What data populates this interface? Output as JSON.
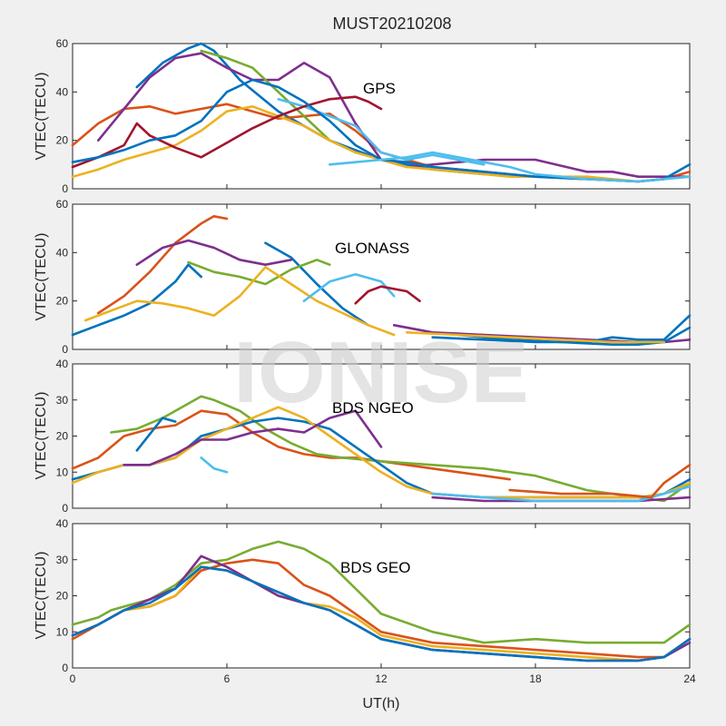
{
  "figure": {
    "title": "MUST20210208",
    "watermark": "IONISE",
    "xlabel": "UT(h)",
    "xticks": [
      "0",
      "6",
      "12",
      "18",
      "24"
    ]
  },
  "colors": [
    "#0072bd",
    "#d95319",
    "#edb120",
    "#7e2f8e",
    "#77ac30",
    "#4dbeee",
    "#a2142f"
  ],
  "chart_data": [
    {
      "type": "line",
      "annotation": "GPS",
      "xlabel": "",
      "ylabel": "VTEC(TECU)",
      "xlim": [
        0,
        24
      ],
      "ylim": [
        0,
        60
      ],
      "yticks": [
        0,
        20,
        40,
        60
      ],
      "series": [
        {
          "color": "#0072bd",
          "x": [
            2.5,
            3.5,
            4.5,
            5,
            5.5,
            6.5,
            8,
            10,
            12,
            14,
            16
          ],
          "y": [
            42,
            52,
            58,
            60,
            57,
            45,
            32,
            20,
            12,
            8,
            6
          ]
        },
        {
          "color": "#d95319",
          "x": [
            0,
            1,
            2,
            3,
            4,
            5,
            6,
            7,
            8,
            9,
            10,
            11,
            12,
            14,
            16,
            18,
            20,
            22,
            23,
            24
          ],
          "y": [
            18,
            27,
            33,
            34,
            31,
            33,
            35,
            32,
            29,
            30,
            31,
            24,
            15,
            9,
            7,
            5,
            4,
            3,
            4,
            7
          ]
        },
        {
          "color": "#7e2f8e",
          "x": [
            1,
            2,
            3,
            4,
            5,
            6,
            7,
            8,
            9,
            10,
            11,
            12,
            13,
            14,
            15,
            16,
            18,
            20,
            21,
            22,
            24
          ],
          "y": [
            20,
            33,
            46,
            54,
            56,
            50,
            45,
            45,
            52,
            46,
            27,
            12,
            9,
            10,
            11,
            12,
            12,
            7,
            7,
            5,
            5
          ]
        },
        {
          "color": "#77ac30",
          "x": [
            5,
            6,
            7,
            8,
            9,
            10,
            11
          ],
          "y": [
            57,
            54,
            50,
            40,
            30,
            20,
            15
          ]
        },
        {
          "color": "#edb120",
          "x": [
            0,
            1,
            2,
            3,
            4,
            5,
            6,
            7,
            8,
            9,
            10,
            11,
            12,
            13,
            14,
            15,
            16,
            17,
            18,
            20,
            22,
            24
          ],
          "y": [
            5,
            8,
            12,
            15,
            18,
            24,
            32,
            34,
            30,
            26,
            20,
            15,
            12,
            9,
            8,
            7,
            6,
            5,
            5,
            5,
            3,
            5
          ]
        },
        {
          "color": "#4dbeee",
          "x": [
            8,
            9,
            10,
            11,
            12,
            13,
            14,
            15,
            16
          ],
          "y": [
            37,
            34,
            30,
            26,
            15,
            12,
            14,
            12,
            10
          ]
        },
        {
          "color": "#a2142f",
          "x": [
            0,
            1,
            2,
            2.5,
            3,
            4,
            5,
            7,
            8,
            9,
            10,
            11,
            11.5,
            12
          ],
          "y": [
            9,
            13,
            18,
            27,
            22,
            17,
            13,
            25,
            30,
            34,
            37,
            38,
            36,
            33
          ]
        },
        {
          "color": "#0072bd",
          "x": [
            0,
            1,
            2,
            3,
            4,
            5,
            6,
            7,
            8,
            9,
            10,
            11,
            12,
            13,
            14,
            16,
            18,
            20,
            22,
            23,
            24
          ],
          "y": [
            11,
            13,
            16,
            20,
            22,
            28,
            40,
            45,
            42,
            36,
            28,
            18,
            12,
            11,
            9,
            7,
            5,
            4,
            3,
            4,
            10
          ]
        },
        {
          "color": "#4dbeee",
          "x": [
            10,
            11,
            12,
            13,
            14,
            15,
            16,
            17,
            18,
            20,
            22,
            24
          ],
          "y": [
            10,
            11,
            12,
            13,
            15,
            13,
            11,
            9,
            6,
            4,
            3,
            5
          ]
        }
      ]
    },
    {
      "type": "line",
      "annotation": "GLONASS",
      "xlabel": "",
      "ylabel": "VTEC(TECU)",
      "xlim": [
        0,
        24
      ],
      "ylim": [
        0,
        60
      ],
      "yticks": [
        0,
        20,
        40,
        60
      ],
      "series": [
        {
          "color": "#0072bd",
          "x": [
            0,
            1,
            2,
            3,
            4,
            4.5,
            5
          ],
          "y": [
            6,
            10,
            14,
            19,
            28,
            35,
            30
          ]
        },
        {
          "color": "#0072bd",
          "x": [
            7.5,
            8.5,
            9.5,
            10.5,
            11.5
          ],
          "y": [
            44,
            38,
            27,
            17,
            10
          ]
        },
        {
          "color": "#d95319",
          "x": [
            1,
            2,
            3,
            4,
            5,
            5.5,
            6
          ],
          "y": [
            15,
            22,
            32,
            44,
            52,
            55,
            54
          ]
        },
        {
          "color": "#7e2f8e",
          "x": [
            2.5,
            3.5,
            4.5,
            5.5,
            6.5,
            7.5,
            8.5
          ],
          "y": [
            35,
            42,
            45,
            42,
            37,
            35,
            37
          ]
        },
        {
          "color": "#77ac30",
          "x": [
            4.5,
            5.5,
            6.5,
            7.5,
            8.5,
            9.5,
            10
          ],
          "y": [
            36,
            32,
            30,
            27,
            33,
            37,
            35
          ]
        },
        {
          "color": "#edb120",
          "x": [
            0.5,
            1.5,
            2.5,
            3.5,
            4.5,
            5.5,
            6.5,
            7.5,
            8.5,
            9.5,
            10.5,
            11.5,
            12.5
          ],
          "y": [
            12,
            16,
            20,
            19,
            17,
            14,
            22,
            34,
            27,
            20,
            15,
            10,
            6
          ]
        },
        {
          "color": "#4dbeee",
          "x": [
            9,
            10,
            11,
            12,
            12.5
          ],
          "y": [
            20,
            28,
            31,
            28,
            22
          ]
        },
        {
          "color": "#a2142f",
          "x": [
            11,
            11.5,
            12,
            13,
            13.5
          ],
          "y": [
            19,
            24,
            26,
            24,
            20
          ]
        },
        {
          "color": "#7e2f8e",
          "x": [
            12.5,
            14,
            16,
            18,
            20,
            22,
            23,
            24
          ],
          "y": [
            10,
            7,
            6,
            5,
            4,
            3,
            3,
            4
          ]
        },
        {
          "color": "#0072bd",
          "x": [
            14,
            16,
            18,
            20,
            21,
            22,
            23,
            24
          ],
          "y": [
            5,
            4,
            3,
            3,
            5,
            4,
            4,
            14
          ]
        },
        {
          "color": "#0072bd",
          "x": [
            15,
            17,
            19,
            21,
            22,
            23,
            24
          ],
          "y": [
            6,
            4,
            3,
            2,
            2,
            3,
            9
          ]
        },
        {
          "color": "#edb120",
          "x": [
            13,
            15,
            17,
            19,
            21,
            23
          ],
          "y": [
            7,
            6,
            5,
            4,
            3,
            3
          ]
        }
      ]
    },
    {
      "type": "line",
      "annotation": "BDS NGEO",
      "xlabel": "",
      "ylabel": "VTEC(TECU)",
      "xlim": [
        0,
        24
      ],
      "ylim": [
        0,
        40
      ],
      "yticks": [
        0,
        10,
        20,
        30,
        40
      ],
      "series": [
        {
          "color": "#d95319",
          "x": [
            0,
            1,
            2,
            3,
            4,
            5,
            6,
            7,
            8,
            9,
            10,
            11,
            12,
            13,
            14,
            15,
            16,
            17
          ],
          "y": [
            11,
            14,
            20,
            22,
            23,
            27,
            26,
            21,
            17,
            15,
            14,
            14,
            13,
            12,
            11,
            10,
            9,
            8
          ]
        },
        {
          "color": "#77ac30",
          "x": [
            1.5,
            2.5,
            3.5,
            4.5,
            5,
            5.5,
            6.5,
            7.5,
            8.5,
            9.5,
            10.5,
            12,
            14,
            16,
            18,
            20,
            22,
            23,
            24
          ],
          "y": [
            21,
            22,
            25,
            29,
            31,
            30,
            27,
            22,
            18,
            15,
            14,
            13,
            12,
            11,
            9,
            5,
            3,
            2,
            7
          ]
        },
        {
          "color": "#0072bd",
          "x": [
            0,
            1,
            2,
            3,
            4,
            5,
            6,
            7,
            8,
            9,
            10,
            11,
            12,
            13,
            14,
            16,
            18,
            20,
            22,
            23,
            24
          ],
          "y": [
            8,
            10,
            12,
            12,
            14,
            20,
            22,
            24,
            25,
            24,
            22,
            17,
            12,
            7,
            4,
            3,
            3,
            3,
            3,
            4,
            8
          ]
        },
        {
          "color": "#edb120",
          "x": [
            0,
            1,
            2,
            3,
            4,
            5,
            6,
            7,
            8,
            9,
            10,
            11,
            12,
            13,
            14,
            16,
            18,
            20,
            22,
            23,
            24
          ],
          "y": [
            7,
            10,
            12,
            12,
            14,
            19,
            22,
            25,
            28,
            25,
            20,
            15,
            10,
            6,
            4,
            3,
            3,
            3,
            3,
            4,
            7
          ]
        },
        {
          "color": "#7e2f8e",
          "x": [
            2,
            3,
            4,
            5,
            6,
            7,
            8,
            9,
            10,
            11,
            12
          ],
          "y": [
            12,
            12,
            15,
            19,
            19,
            21,
            22,
            21,
            25,
            27,
            17
          ]
        },
        {
          "color": "#0072bd",
          "x": [
            2.5,
            3.5,
            4
          ],
          "y": [
            16,
            25,
            24
          ]
        },
        {
          "color": "#4dbeee",
          "x": [
            5,
            5.5,
            6
          ],
          "y": [
            14,
            11,
            10
          ]
        },
        {
          "color": "#7e2f8e",
          "x": [
            14,
            16,
            18,
            20,
            22,
            24
          ],
          "y": [
            3,
            2,
            2,
            2,
            2,
            3
          ]
        },
        {
          "color": "#4dbeee",
          "x": [
            14,
            16,
            18,
            20,
            22,
            24
          ],
          "y": [
            4,
            3,
            2,
            2,
            2,
            6
          ]
        },
        {
          "color": "#d95319",
          "x": [
            17,
            19,
            21,
            22.5,
            23,
            24
          ],
          "y": [
            5,
            4,
            4,
            3,
            7,
            12
          ]
        }
      ]
    },
    {
      "type": "line",
      "annotation": "BDS GEO",
      "xlabel": "UT(h)",
      "ylabel": "VTEC(TECU)",
      "xlim": [
        0,
        24
      ],
      "ylim": [
        0,
        40
      ],
      "yticks": [
        0,
        10,
        20,
        30,
        40
      ],
      "series": [
        {
          "color": "#77ac30",
          "x": [
            0,
            1,
            1.5,
            2,
            3,
            4,
            5,
            6,
            7,
            8,
            9,
            10,
            11,
            12,
            14,
            16,
            18,
            20,
            22,
            23,
            24
          ],
          "y": [
            12,
            14,
            16,
            17,
            19,
            23,
            29,
            30,
            33,
            35,
            33,
            29,
            22,
            15,
            10,
            7,
            8,
            7,
            7,
            7,
            12
          ]
        },
        {
          "color": "#d95319",
          "x": [
            0,
            1,
            2,
            3,
            4,
            5,
            6,
            7,
            8,
            9,
            10,
            11,
            12,
            14,
            16,
            18,
            20,
            22,
            23,
            24
          ],
          "y": [
            8,
            12,
            16,
            17,
            20,
            27,
            29,
            30,
            29,
            23,
            20,
            15,
            10,
            7,
            6,
            5,
            4,
            3,
            3,
            8
          ]
        },
        {
          "color": "#edb120",
          "x": [
            0,
            1,
            2,
            3,
            4,
            5,
            6,
            7,
            8,
            9,
            10,
            11,
            12,
            14,
            16,
            18,
            20,
            22,
            23,
            24
          ],
          "y": [
            9,
            12,
            16,
            17,
            20,
            28,
            27,
            24,
            20,
            18,
            17,
            14,
            9,
            6,
            5,
            4,
            3,
            2,
            3,
            8
          ]
        },
        {
          "color": "#7e2f8e",
          "x": [
            0,
            1,
            2,
            3,
            4,
            5,
            6,
            7,
            8,
            9,
            10,
            11,
            12,
            14,
            16,
            18,
            20,
            22,
            23,
            24
          ],
          "y": [
            9,
            12,
            16,
            19,
            22,
            31,
            28,
            24,
            20,
            18,
            16,
            12,
            8,
            5,
            4,
            3,
            2,
            2,
            3,
            7
          ]
        },
        {
          "color": "#0072bd",
          "x": [
            0,
            1,
            2,
            3,
            4,
            5,
            6,
            7,
            8,
            9,
            10,
            11,
            12,
            14,
            16,
            18,
            20,
            22,
            23,
            24
          ],
          "y": [
            9,
            12,
            16,
            18,
            22,
            28,
            27,
            24,
            21,
            18,
            16,
            12,
            8,
            5,
            4,
            3,
            2,
            2,
            3,
            8
          ]
        }
      ]
    }
  ]
}
